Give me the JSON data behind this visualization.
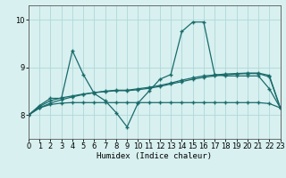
{
  "xlabel": "Humidex (Indice chaleur)",
  "xlim": [
    0,
    23
  ],
  "ylim": [
    7.5,
    10.3
  ],
  "xticks": [
    0,
    1,
    2,
    3,
    4,
    5,
    6,
    7,
    8,
    9,
    10,
    11,
    12,
    13,
    14,
    15,
    16,
    17,
    18,
    19,
    20,
    21,
    22,
    23
  ],
  "yticks": [
    8,
    9,
    10
  ],
  "background_color": "#d8f0f0",
  "grid_color": "#b0d8d8",
  "line_color": "#1a6b6b",
  "line1_x": [
    0,
    1,
    2,
    3,
    4,
    5,
    6,
    7,
    8,
    9,
    10,
    11,
    12,
    13,
    14,
    15,
    16,
    17,
    18,
    19,
    20,
    21,
    22,
    23
  ],
  "line1_y": [
    8.0,
    8.2,
    8.35,
    8.35,
    9.35,
    8.85,
    8.45,
    8.3,
    8.05,
    7.75,
    8.25,
    8.5,
    8.75,
    8.85,
    9.75,
    9.95,
    9.95,
    8.85,
    8.82,
    8.82,
    8.82,
    8.82,
    8.55,
    8.15
  ],
  "line2_x": [
    0,
    1,
    2,
    3,
    4,
    5,
    6,
    7,
    8,
    9,
    10,
    11,
    12,
    13,
    14,
    15,
    16,
    17,
    18,
    19,
    20,
    21,
    22,
    23
  ],
  "line2_y": [
    8.0,
    8.15,
    8.25,
    8.32,
    8.38,
    8.43,
    8.47,
    8.5,
    8.52,
    8.52,
    8.55,
    8.58,
    8.62,
    8.67,
    8.73,
    8.78,
    8.82,
    8.84,
    8.86,
    8.87,
    8.88,
    8.88,
    8.83,
    8.15
  ],
  "line3_x": [
    0,
    1,
    2,
    3,
    4,
    5,
    6,
    7,
    8,
    9,
    10,
    11,
    12,
    13,
    14,
    15,
    16,
    17,
    18,
    19,
    20,
    21,
    22,
    23
  ],
  "line3_y": [
    8.0,
    8.15,
    8.22,
    8.25,
    8.26,
    8.26,
    8.26,
    8.26,
    8.26,
    8.26,
    8.26,
    8.26,
    8.26,
    8.26,
    8.26,
    8.26,
    8.26,
    8.26,
    8.26,
    8.26,
    8.26,
    8.26,
    8.24,
    8.15
  ],
  "line4_x": [
    0,
    1,
    2,
    3,
    4,
    5,
    6,
    7,
    8,
    9,
    10,
    11,
    12,
    13,
    14,
    15,
    16,
    17,
    18,
    19,
    20,
    21,
    22,
    23
  ],
  "line4_y": [
    8.0,
    8.18,
    8.3,
    8.36,
    8.4,
    8.44,
    8.47,
    8.49,
    8.51,
    8.51,
    8.53,
    8.56,
    8.6,
    8.65,
    8.7,
    8.75,
    8.79,
    8.82,
    8.84,
    8.86,
    8.87,
    8.87,
    8.8,
    8.15
  ]
}
